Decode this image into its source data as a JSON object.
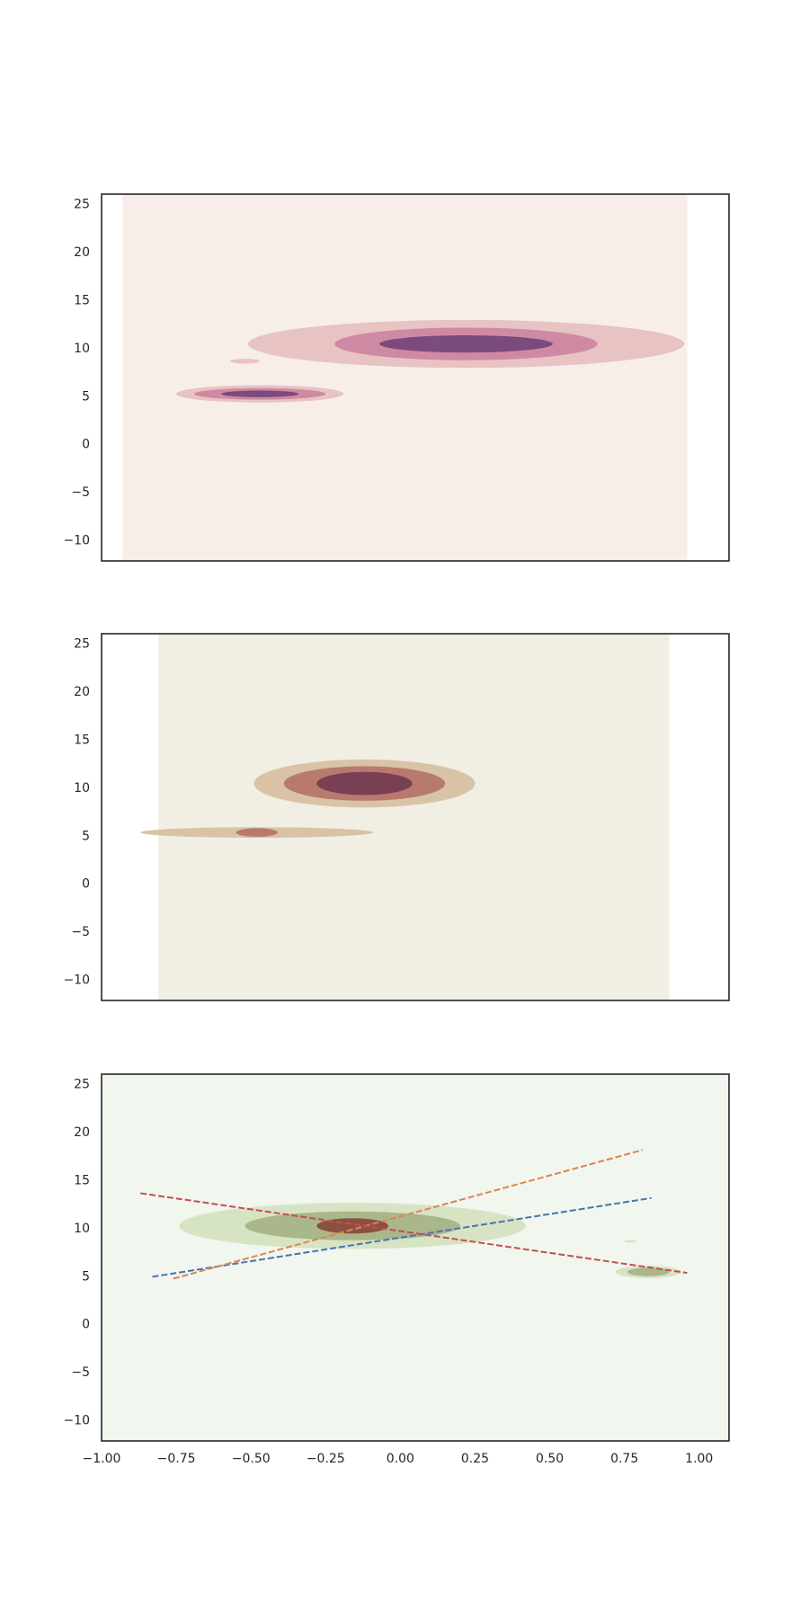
{
  "chart_data": [
    {
      "type": "contour",
      "title": "",
      "xlabel": "",
      "ylabel": "",
      "xlim": [
        -1.0,
        1.1
      ],
      "ylim": [
        -12.2,
        26.0
      ],
      "show_xticks": false,
      "yticks": [
        -10,
        -5,
        0,
        5,
        10,
        15,
        20,
        25
      ],
      "ytick_labels": [
        "−10",
        "−5",
        "0",
        "5",
        "10",
        "15",
        "20",
        "25"
      ],
      "grid": false,
      "background_extent": {
        "x": [
          -0.93,
          0.96
        ]
      },
      "colors": {
        "background": "#f7eeea",
        "levels": [
          "#e8c3c4",
          "#cf8aa3",
          "#7b4b7e"
        ]
      },
      "density_regions": [
        {
          "center": [
            0.22,
            10.4
          ],
          "radii": [
            [
              0.73,
              2.5
            ],
            [
              0.44,
              1.7
            ],
            [
              0.29,
              0.9
            ]
          ]
        },
        {
          "center": [
            -0.47,
            5.2
          ],
          "radii": [
            [
              0.28,
              0.9
            ],
            [
              0.22,
              0.6
            ],
            [
              0.13,
              0.35
            ]
          ]
        },
        {
          "center": [
            -0.52,
            8.6
          ],
          "radii": [
            [
              0.05,
              0.25
            ]
          ]
        }
      ],
      "lines": []
    },
    {
      "type": "contour",
      "title": "",
      "xlabel": "",
      "ylabel": "",
      "xlim": [
        -1.0,
        1.1
      ],
      "ylim": [
        -12.2,
        26.0
      ],
      "show_xticks": false,
      "yticks": [
        -10,
        -5,
        0,
        5,
        10,
        15,
        20,
        25
      ],
      "ytick_labels": [
        "−10",
        "−5",
        "0",
        "5",
        "10",
        "15",
        "20",
        "25"
      ],
      "grid": false,
      "background_extent": {
        "x": [
          -0.81,
          0.9
        ]
      },
      "colors": {
        "background": "#f1eee3",
        "levels": [
          "#d9c3a6",
          "#b87a6e",
          "#7a3e55"
        ]
      },
      "density_regions": [
        {
          "center": [
            -0.12,
            10.4
          ],
          "radii": [
            [
              0.37,
              2.5
            ],
            [
              0.27,
              1.8
            ],
            [
              0.16,
              1.2
            ]
          ]
        },
        {
          "center": [
            -0.48,
            5.3
          ],
          "radii": [
            [
              0.39,
              0.55
            ],
            [
              0.07,
              0.45
            ]
          ]
        }
      ],
      "lines": []
    },
    {
      "type": "contour",
      "title": "",
      "xlabel": "",
      "ylabel": "",
      "xlim": [
        -1.0,
        1.1
      ],
      "ylim": [
        -12.2,
        26.0
      ],
      "show_xticks": true,
      "xticks": [
        -1.0,
        -0.75,
        -0.5,
        -0.25,
        0.0,
        0.25,
        0.5,
        0.75,
        1.0
      ],
      "xtick_labels": [
        "−1.00",
        "−0.75",
        "−0.50",
        "−0.25",
        "0.00",
        "0.25",
        "0.50",
        "0.75",
        "1.00"
      ],
      "yticks": [
        -10,
        -5,
        0,
        5,
        10,
        15,
        20,
        25
      ],
      "ytick_labels": [
        "−10",
        "−5",
        "0",
        "5",
        "10",
        "15",
        "20",
        "25"
      ],
      "grid": false,
      "background_extent": {
        "x": [
          -1.0,
          1.1
        ]
      },
      "colors": {
        "background": "#f1f6ee",
        "levels": [
          "#d6e4c4",
          "#aab78a",
          "#8a5040"
        ]
      },
      "density_regions": [
        {
          "center": [
            -0.16,
            10.2
          ],
          "radii": [
            [
              0.58,
              2.4
            ],
            [
              0.36,
              1.5
            ],
            [
              0.12,
              0.8
            ]
          ]
        },
        {
          "center": [
            0.83,
            5.4
          ],
          "radii": [
            [
              0.11,
              0.65
            ],
            [
              0.07,
              0.45
            ]
          ]
        },
        {
          "center": [
            0.77,
            8.6
          ],
          "radii": [
            [
              0.02,
              0.12
            ]
          ]
        }
      ],
      "lines": [
        {
          "color": "#4c72b0",
          "dash": true,
          "points": [
            [
              -0.83,
              4.9
            ],
            [
              0.84,
              13.1
            ]
          ]
        },
        {
          "color": "#dd8452",
          "dash": true,
          "points": [
            [
              -0.76,
              4.7
            ],
            [
              0.81,
              18.1
            ]
          ]
        },
        {
          "color": "#c44e52",
          "dash": true,
          "points": [
            [
              -0.87,
              13.6
            ],
            [
              0.96,
              5.3
            ]
          ]
        }
      ]
    }
  ]
}
